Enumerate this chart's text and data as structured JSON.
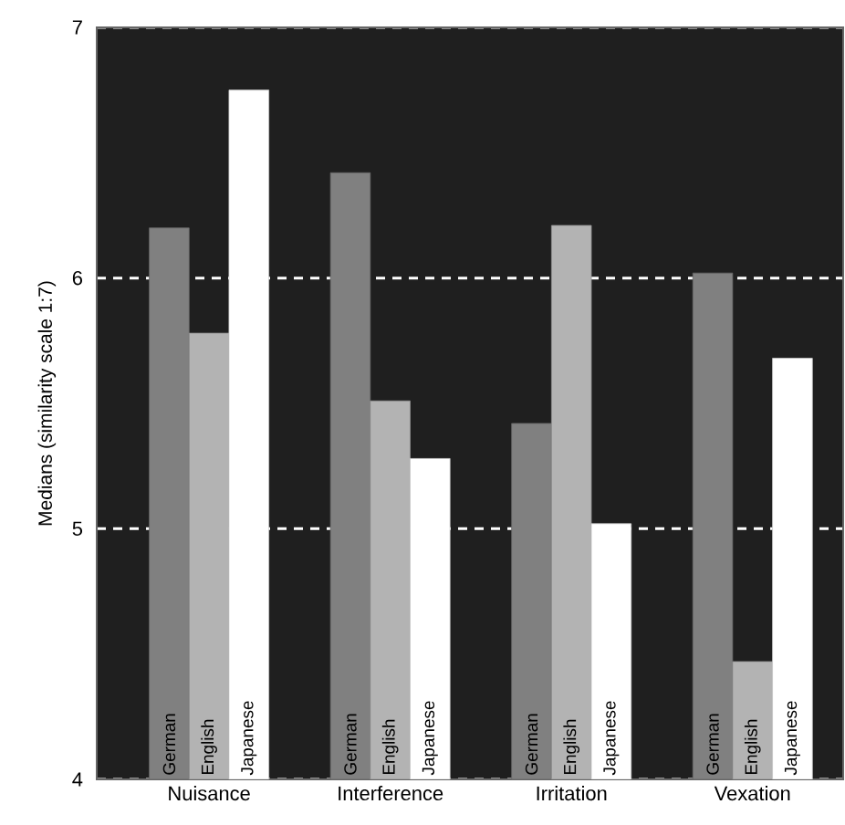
{
  "chart_data": {
    "type": "bar",
    "ylabel": "Medians (similarity scale 1:7)",
    "categories": [
      "Nuisance",
      "Interference",
      "Irritation",
      "Vexation"
    ],
    "series": [
      {
        "name": "German",
        "color": "#808080",
        "values": [
          6.2,
          6.42,
          5.42,
          6.02
        ]
      },
      {
        "name": "English",
        "color": "#b3b3b3",
        "values": [
          5.78,
          5.51,
          6.21,
          4.47
        ]
      },
      {
        "name": "Japanese",
        "color": "#ffffff",
        "values": [
          6.75,
          5.28,
          5.02,
          5.68
        ]
      }
    ],
    "ylim": [
      4,
      7
    ],
    "yticks": [
      4,
      5,
      6,
      7
    ],
    "grid": "y"
  }
}
